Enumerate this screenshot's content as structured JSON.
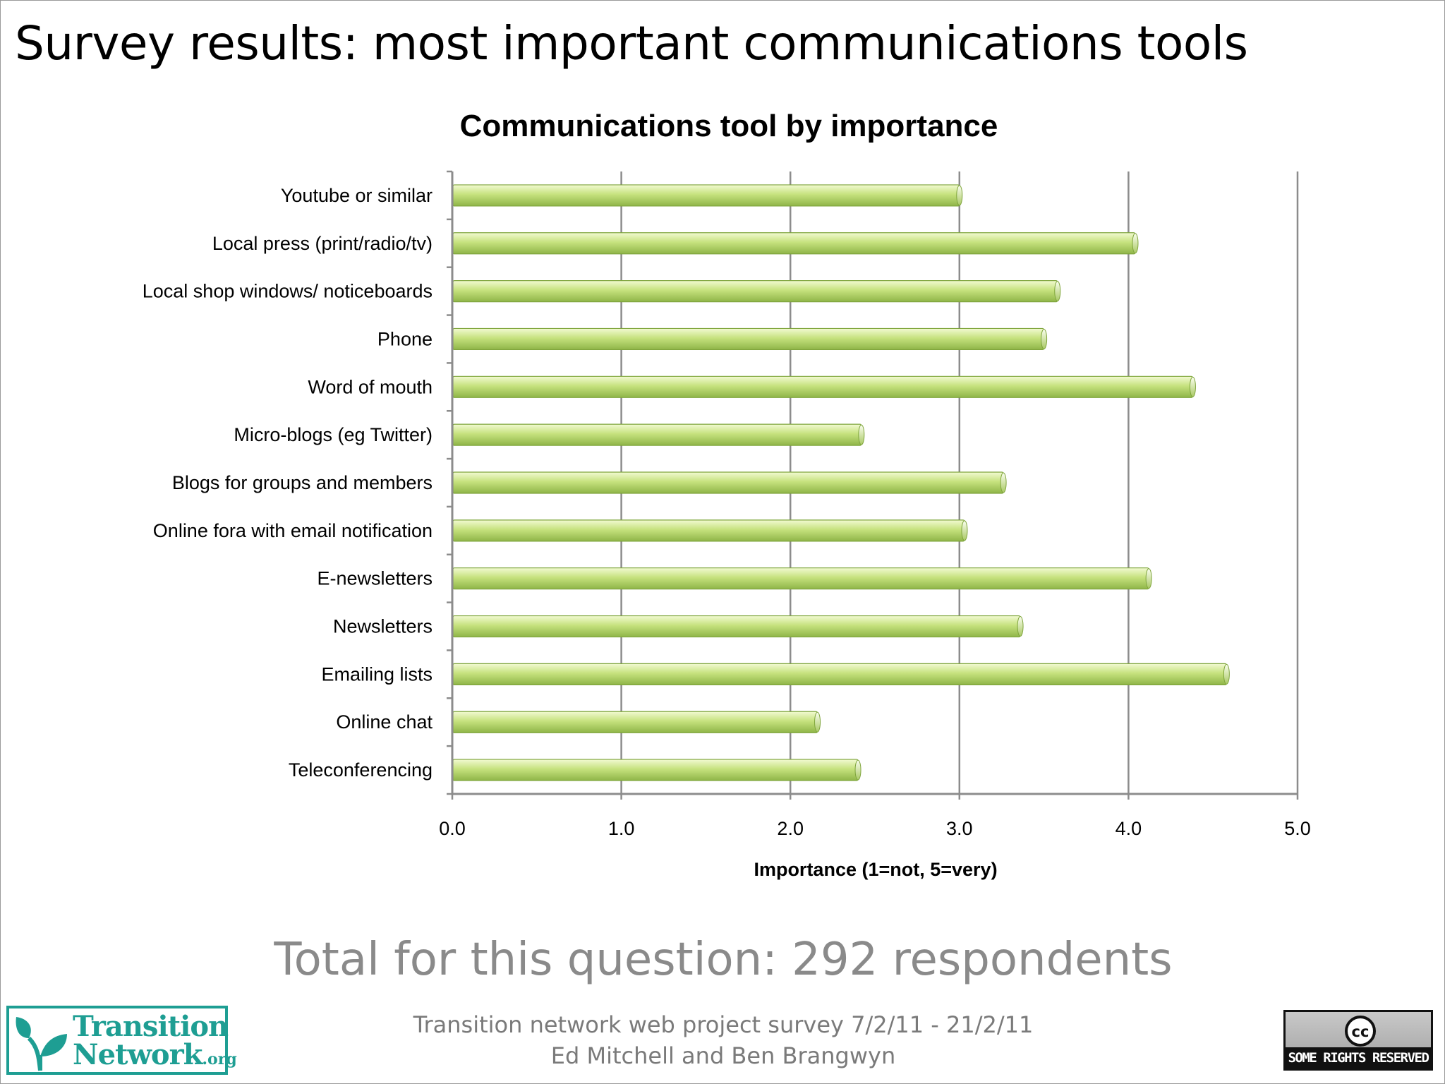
{
  "slide": {
    "title": "Survey results: most important communications tools",
    "total": "Total for this question: 292 respondents",
    "footer_line1": "Transition network web project survey 7/2/11 - 21/2/11",
    "footer_line2": "Ed Mitchell and Ben Brangwyn"
  },
  "logos": {
    "transition_network": {
      "line1": "Transition",
      "line2": "Network",
      "suffix": ".org",
      "color": "#1e9e93",
      "icon": "leaf-icon"
    },
    "creative_commons": {
      "symbol": "cc",
      "text": "SOME RIGHTS RESERVED",
      "icon": "cc-icon"
    }
  },
  "chart_data": {
    "type": "bar",
    "orientation": "horizontal",
    "title": "Communications tool by importance",
    "xlabel": "Importance (1=not, 5=very)",
    "ylabel": "",
    "xlim": [
      0,
      5
    ],
    "xticks": [
      "0.0",
      "1.0",
      "2.0",
      "3.0",
      "4.0",
      "5.0"
    ],
    "grid": true,
    "bar_color": "#c2e07a",
    "categories": [
      "Youtube or similar",
      "Local press (print/radio/tv)",
      "Local shop windows/ noticeboards",
      "Phone",
      "Word of mouth",
      "Micro-blogs (eg Twitter)",
      "Blogs for groups and members",
      "Online fora with email notification",
      "E-newsletters",
      "Newsletters",
      "Emailing lists",
      "Online chat",
      "Teleconferencing"
    ],
    "values": [
      3.0,
      4.04,
      3.58,
      3.5,
      4.38,
      2.42,
      3.26,
      3.03,
      4.12,
      3.36,
      4.58,
      2.16,
      2.4
    ]
  }
}
